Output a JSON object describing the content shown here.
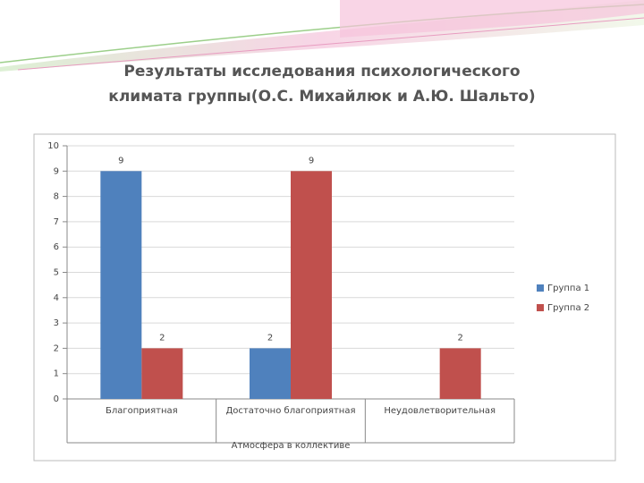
{
  "chart_data": {
    "type": "bar",
    "title": "Результаты исследования психологического климата группы(О.С. Михайлюк и А.Ю. Шальто)",
    "x_label": "Атмосфера в коллективе",
    "categories": [
      "Благоприятная",
      "Достаточно благоприятная",
      "Неудовлетворительная"
    ],
    "series": [
      {
        "name": "Группа 1",
        "color": "#4f81bd",
        "values": [
          9,
          2,
          null
        ]
      },
      {
        "name": "Группа 2",
        "color": "#c0504d",
        "values": [
          2,
          9,
          2
        ]
      }
    ],
    "ylim": [
      0,
      10
    ],
    "yticks": [
      0,
      1,
      2,
      3,
      4,
      5,
      6,
      7,
      8,
      9,
      10
    ],
    "grid": true,
    "legend": "right",
    "data_labels": true
  }
}
